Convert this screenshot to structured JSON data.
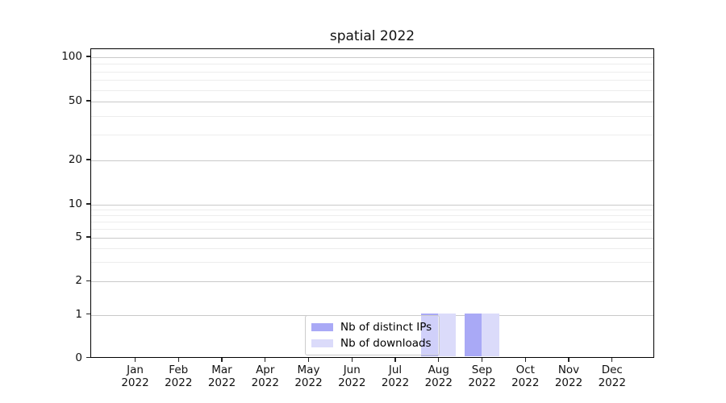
{
  "chart_data": {
    "type": "bar",
    "title": "spatial 2022",
    "x_axis": {
      "months": [
        "Jan",
        "Feb",
        "Mar",
        "Apr",
        "May",
        "Jun",
        "Jul",
        "Aug",
        "Sep",
        "Oct",
        "Nov",
        "Dec"
      ],
      "year": "2022"
    },
    "y_axis": {
      "scale": "symlog",
      "major_ticks": [
        0,
        1,
        2,
        5,
        10,
        20,
        50,
        100
      ],
      "minor_ticks": [
        3,
        4,
        6,
        7,
        8,
        9,
        30,
        40,
        60,
        70,
        80,
        90
      ],
      "ylim": [
        0,
        115
      ]
    },
    "series": [
      {
        "name": "Nb of distinct IPs",
        "color": "#a9a9f6",
        "values": [
          0,
          0,
          0,
          0,
          0,
          0,
          0,
          1,
          1,
          0,
          0,
          0
        ]
      },
      {
        "name": "Nb of downloads",
        "color": "#dbdbfa",
        "values": [
          0,
          0,
          0,
          0,
          0,
          0,
          0,
          1,
          1,
          0,
          0,
          0
        ]
      }
    ],
    "legend": {
      "position": "lower center",
      "entries": [
        "Nb of distinct IPs",
        "Nb of downloads"
      ]
    },
    "grid": {
      "major": true,
      "minor": true
    }
  },
  "colors": {
    "grid_major": "#c9c9c9",
    "grid_minor": "#ededed",
    "spine": "#000000",
    "legend_border": "#cccccc",
    "background": "#ffffff"
  }
}
